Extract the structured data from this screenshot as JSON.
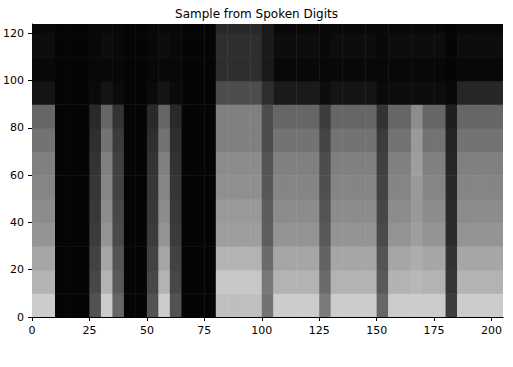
{
  "chart_data": {
    "type": "heatmap",
    "title": "Sample from Spoken Digits",
    "x_edges": [
      0,
      5,
      10,
      15,
      20,
      25,
      30,
      35,
      40,
      45,
      50,
      55,
      60,
      65,
      70,
      75,
      80,
      85,
      90,
      95,
      100,
      105,
      110,
      115,
      120,
      125,
      130,
      135,
      140,
      145,
      150,
      155,
      160,
      165,
      170,
      175,
      180,
      185,
      190,
      195,
      200,
      205
    ],
    "y_edges": [
      0,
      10,
      20,
      30,
      40,
      50,
      60,
      70,
      80,
      90,
      100,
      110,
      120,
      124
    ],
    "cells": [
      [
        0.8,
        0.8,
        0.02,
        0.02,
        0.02,
        0.32,
        0.8,
        0.4,
        0.02,
        0.02,
        0.32,
        0.8,
        0.32,
        0.02,
        0.02,
        0.02,
        0.75,
        0.75,
        0.75,
        0.75,
        0.45,
        0.8,
        0.8,
        0.8,
        0.8,
        0.48,
        0.8,
        0.8,
        0.8,
        0.8,
        0.4,
        0.8,
        0.8,
        0.8,
        0.8,
        0.8,
        0.24,
        0.8,
        0.8,
        0.8,
        0.8
      ],
      [
        0.7,
        0.7,
        0.02,
        0.02,
        0.02,
        0.28,
        0.7,
        0.35,
        0.02,
        0.02,
        0.28,
        0.7,
        0.28,
        0.02,
        0.02,
        0.02,
        0.78,
        0.78,
        0.78,
        0.78,
        0.47,
        0.7,
        0.7,
        0.7,
        0.7,
        0.42,
        0.7,
        0.7,
        0.7,
        0.7,
        0.35,
        0.7,
        0.7,
        0.72,
        0.7,
        0.7,
        0.21,
        0.7,
        0.7,
        0.7,
        0.7
      ],
      [
        0.65,
        0.65,
        0.02,
        0.02,
        0.02,
        0.26,
        0.65,
        0.33,
        0.02,
        0.02,
        0.26,
        0.65,
        0.26,
        0.02,
        0.02,
        0.02,
        0.7,
        0.7,
        0.7,
        0.7,
        0.42,
        0.65,
        0.65,
        0.65,
        0.65,
        0.39,
        0.65,
        0.65,
        0.65,
        0.65,
        0.33,
        0.65,
        0.65,
        0.68,
        0.65,
        0.65,
        0.2,
        0.65,
        0.65,
        0.65,
        0.65
      ],
      [
        0.58,
        0.58,
        0.02,
        0.02,
        0.02,
        0.23,
        0.58,
        0.29,
        0.02,
        0.02,
        0.23,
        0.58,
        0.23,
        0.02,
        0.02,
        0.02,
        0.62,
        0.62,
        0.62,
        0.62,
        0.37,
        0.58,
        0.58,
        0.58,
        0.58,
        0.35,
        0.58,
        0.58,
        0.58,
        0.58,
        0.29,
        0.58,
        0.58,
        0.62,
        0.58,
        0.58,
        0.17,
        0.58,
        0.58,
        0.58,
        0.58
      ],
      [
        0.55,
        0.55,
        0.02,
        0.02,
        0.02,
        0.22,
        0.55,
        0.28,
        0.02,
        0.02,
        0.22,
        0.55,
        0.22,
        0.02,
        0.02,
        0.02,
        0.6,
        0.6,
        0.6,
        0.6,
        0.36,
        0.55,
        0.55,
        0.55,
        0.55,
        0.33,
        0.55,
        0.55,
        0.55,
        0.55,
        0.28,
        0.55,
        0.55,
        0.6,
        0.55,
        0.55,
        0.17,
        0.55,
        0.55,
        0.55,
        0.55
      ],
      [
        0.52,
        0.52,
        0.02,
        0.02,
        0.02,
        0.21,
        0.52,
        0.26,
        0.02,
        0.02,
        0.21,
        0.52,
        0.21,
        0.02,
        0.02,
        0.02,
        0.56,
        0.56,
        0.56,
        0.56,
        0.34,
        0.52,
        0.52,
        0.52,
        0.52,
        0.31,
        0.52,
        0.52,
        0.52,
        0.52,
        0.26,
        0.52,
        0.52,
        0.6,
        0.52,
        0.52,
        0.16,
        0.52,
        0.52,
        0.52,
        0.52
      ],
      [
        0.5,
        0.5,
        0.02,
        0.02,
        0.02,
        0.2,
        0.5,
        0.25,
        0.02,
        0.02,
        0.2,
        0.5,
        0.2,
        0.02,
        0.02,
        0.02,
        0.55,
        0.55,
        0.55,
        0.55,
        0.33,
        0.5,
        0.5,
        0.5,
        0.5,
        0.3,
        0.5,
        0.5,
        0.5,
        0.5,
        0.25,
        0.5,
        0.5,
        0.62,
        0.5,
        0.5,
        0.15,
        0.5,
        0.5,
        0.5,
        0.5
      ],
      [
        0.45,
        0.45,
        0.02,
        0.02,
        0.02,
        0.18,
        0.45,
        0.23,
        0.02,
        0.02,
        0.18,
        0.45,
        0.18,
        0.02,
        0.02,
        0.02,
        0.5,
        0.5,
        0.5,
        0.5,
        0.3,
        0.45,
        0.45,
        0.45,
        0.45,
        0.27,
        0.45,
        0.45,
        0.45,
        0.45,
        0.23,
        0.45,
        0.45,
        0.6,
        0.45,
        0.45,
        0.14,
        0.45,
        0.45,
        0.45,
        0.45
      ],
      [
        0.4,
        0.4,
        0.02,
        0.02,
        0.02,
        0.16,
        0.4,
        0.2,
        0.02,
        0.02,
        0.16,
        0.4,
        0.16,
        0.02,
        0.02,
        0.02,
        0.5,
        0.5,
        0.5,
        0.5,
        0.3,
        0.4,
        0.4,
        0.4,
        0.4,
        0.24,
        0.4,
        0.4,
        0.4,
        0.4,
        0.2,
        0.4,
        0.4,
        0.55,
        0.4,
        0.4,
        0.12,
        0.4,
        0.4,
        0.4,
        0.4
      ],
      [
        0.08,
        0.08,
        0.02,
        0.02,
        0.02,
        0.04,
        0.08,
        0.04,
        0.02,
        0.02,
        0.04,
        0.08,
        0.04,
        0.02,
        0.02,
        0.02,
        0.3,
        0.3,
        0.3,
        0.3,
        0.18,
        0.1,
        0.1,
        0.1,
        0.1,
        0.05,
        0.08,
        0.08,
        0.08,
        0.08,
        0.04,
        0.05,
        0.05,
        0.05,
        0.05,
        0.05,
        0.03,
        0.15,
        0.15,
        0.15,
        0.15
      ],
      [
        0.03,
        0.03,
        0.02,
        0.02,
        0.02,
        0.03,
        0.03,
        0.03,
        0.02,
        0.02,
        0.03,
        0.03,
        0.03,
        0.02,
        0.02,
        0.02,
        0.18,
        0.18,
        0.18,
        0.18,
        0.1,
        0.03,
        0.03,
        0.03,
        0.03,
        0.03,
        0.03,
        0.03,
        0.03,
        0.03,
        0.03,
        0.03,
        0.03,
        0.03,
        0.03,
        0.03,
        0.02,
        0.03,
        0.03,
        0.03,
        0.03
      ],
      [
        0.05,
        0.05,
        0.02,
        0.02,
        0.02,
        0.03,
        0.05,
        0.03,
        0.02,
        0.02,
        0.03,
        0.05,
        0.03,
        0.02,
        0.02,
        0.02,
        0.18,
        0.18,
        0.18,
        0.18,
        0.1,
        0.05,
        0.05,
        0.05,
        0.05,
        0.03,
        0.05,
        0.05,
        0.05,
        0.05,
        0.03,
        0.05,
        0.05,
        0.05,
        0.05,
        0.05,
        0.02,
        0.05,
        0.05,
        0.05,
        0.05
      ],
      [
        0.03,
        0.03,
        0.02,
        0.02,
        0.02,
        0.03,
        0.03,
        0.03,
        0.02,
        0.02,
        0.03,
        0.03,
        0.03,
        0.02,
        0.02,
        0.02,
        0.16,
        0.16,
        0.16,
        0.16,
        0.1,
        0.03,
        0.03,
        0.03,
        0.03,
        0.03,
        0.03,
        0.03,
        0.03,
        0.03,
        0.03,
        0.03,
        0.03,
        0.03,
        0.03,
        0.03,
        0.02,
        0.03,
        0.03,
        0.03,
        0.03
      ]
    ],
    "color_range": [
      0,
      1
    ],
    "xlim": [
      0,
      205
    ],
    "ylim": [
      0,
      124
    ],
    "xticks": [
      0,
      25,
      50,
      75,
      100,
      125,
      150,
      175,
      200
    ],
    "yticks": [
      0,
      20,
      40,
      60,
      80,
      100,
      120
    ],
    "grid": false
  }
}
